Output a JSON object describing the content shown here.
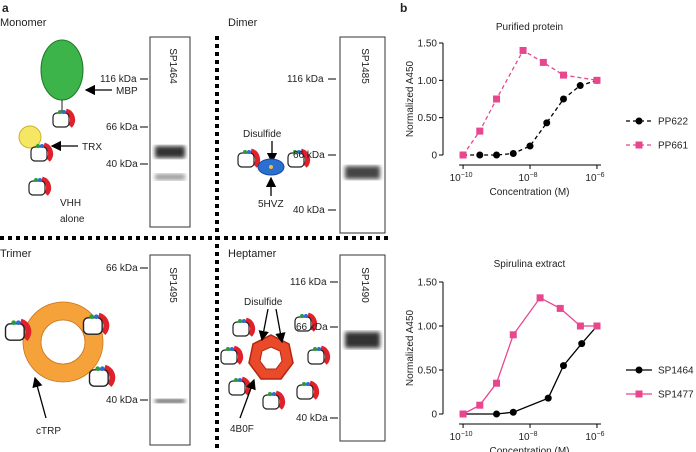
{
  "panel_labels": [
    "a",
    "b"
  ],
  "diagram": {
    "monomer": {
      "title": "Monomer",
      "labels": [
        "MBP",
        "TRX"
      ],
      "vhh": [
        "VHH",
        "alone"
      ],
      "gel": {
        "lane": "SP1464",
        "markers": [
          "116 kDa",
          "66 kDa",
          "40 kDa"
        ]
      }
    },
    "dimer": {
      "title": "Dimer",
      "labels": [
        "Disulfide",
        "5HVZ"
      ],
      "gel": {
        "lane": "SP1485",
        "markers": [
          "116 kDa",
          "66 kDa",
          "40 kDa"
        ]
      }
    },
    "trimer": {
      "title": "Trimer",
      "labels": [
        "cTRP"
      ],
      "gel": {
        "lane": "SP1495",
        "markers": [
          "66 kDa",
          "40 kDa"
        ]
      }
    },
    "heptamer": {
      "title": "Heptamer",
      "labels": [
        "Disulfide",
        "4B0F"
      ],
      "gel": {
        "lane": "SP1490",
        "markers": [
          "116 kDa",
          "66 kDa",
          "40 kDa"
        ]
      }
    }
  },
  "chart_data": [
    {
      "type": "scatter",
      "title": "Purified protein",
      "xlabel": "Concentration (M)",
      "ylabel": "Normalized A450",
      "log_x": true,
      "line_style": "dashed",
      "xlim": [
        3.8e-11,
        2.45e-06
      ],
      "ylim": [
        0,
        1.5
      ],
      "xticks": [
        {
          "value": 1e-10,
          "label": "10",
          "exponent": "−10"
        },
        {
          "value": 1e-08,
          "label": "10",
          "exponent": "−8"
        },
        {
          "value": 1e-06,
          "label": "10",
          "exponent": "−6"
        }
      ],
      "yticks": [
        0,
        {
          "value": 0.5,
          "label": "0.50"
        },
        {
          "value": 1,
          "label": "1.00"
        },
        {
          "value": 1.5,
          "label": "1.50"
        }
      ],
      "series": [
        {
          "name": "PP622",
          "color": "#000000",
          "marker": "circle",
          "x": [
            1e-10,
            3.16e-10,
            1e-09,
            3.16e-09,
            1e-08,
            3.16e-08,
            1e-07,
            3.16e-07,
            1e-06
          ],
          "values": [
            0,
            0,
            0,
            0.02,
            0.12,
            0.43,
            0.75,
            0.93,
            1.0
          ]
        },
        {
          "name": "PP661",
          "color": "#e8468e",
          "marker": "square",
          "x": [
            1e-10,
            3.16e-10,
            1e-09,
            6.2e-09,
            2.5e-08,
            1e-07,
            1e-06
          ],
          "values": [
            0,
            0.32,
            0.75,
            1.4,
            1.24,
            1.07,
            1.0
          ]
        }
      ]
    },
    {
      "type": "scatter",
      "title": "Spirulina extract",
      "xlabel": "Concentration (M)",
      "ylabel": "Normalized A450",
      "log_x": true,
      "line_style": "solid",
      "xlim": [
        3.8e-11,
        2.45e-06
      ],
      "ylim": [
        0,
        1.5
      ],
      "xticks": [
        {
          "value": 1e-10,
          "label": "10",
          "exponent": "−10"
        },
        {
          "value": 1e-08,
          "label": "10",
          "exponent": "−8"
        },
        {
          "value": 1e-06,
          "label": "10",
          "exponent": "−6"
        }
      ],
      "yticks": [
        0,
        {
          "value": 0.5,
          "label": "0.50"
        },
        {
          "value": 1,
          "label": "1.00"
        },
        {
          "value": 1.5,
          "label": "1.50"
        }
      ],
      "series": [
        {
          "name": "SP1464",
          "color": "#000000",
          "marker": "circle",
          "x": [
            1e-10,
            1e-09,
            3.16e-09,
            3.5e-08,
            1e-07,
            3.5e-07,
            1e-06
          ],
          "values": [
            0,
            0,
            0.02,
            0.18,
            0.55,
            0.8,
            1.0
          ]
        },
        {
          "name": "SP1477",
          "color": "#e8468e",
          "marker": "square",
          "x": [
            1e-10,
            3.16e-10,
            1e-09,
            3.16e-09,
            2e-08,
            8e-08,
            3.2e-07,
            1e-06
          ],
          "values": [
            0,
            0.1,
            0.35,
            0.9,
            1.32,
            1.2,
            1.0,
            1.0
          ]
        }
      ]
    }
  ]
}
